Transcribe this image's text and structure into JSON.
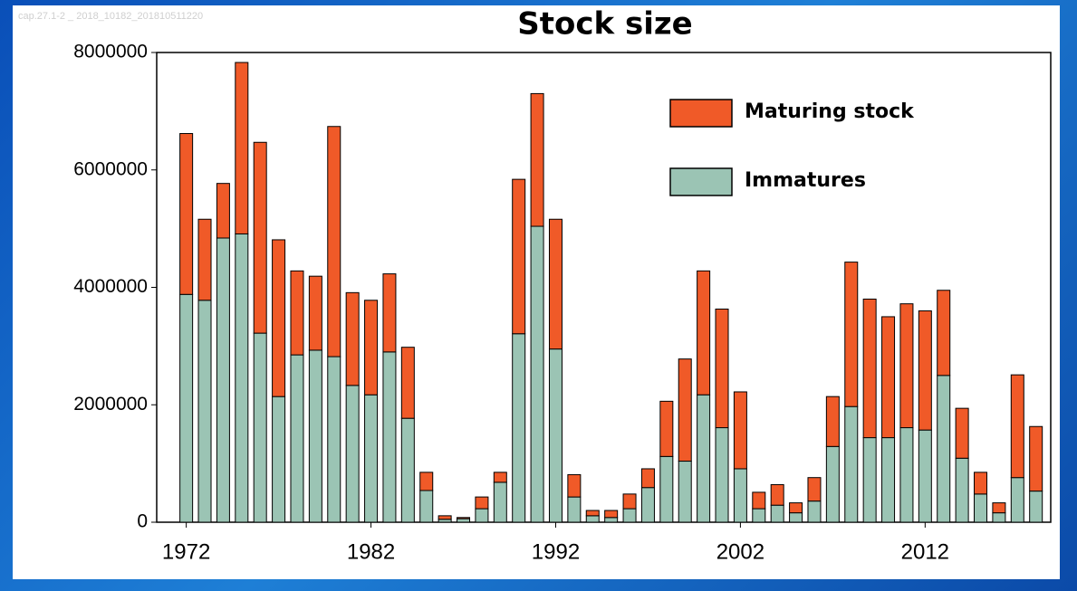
{
  "chart_data": {
    "type": "stacked-bar",
    "title": "Stock size",
    "note": "cap.27.1-2 _ 2018_10182_201810511220",
    "x": [
      1972,
      1973,
      1974,
      1975,
      1976,
      1977,
      1978,
      1979,
      1980,
      1981,
      1982,
      1983,
      1984,
      1985,
      1986,
      1987,
      1988,
      1989,
      1990,
      1991,
      1992,
      1993,
      1994,
      1995,
      1996,
      1997,
      1998,
      1999,
      2000,
      2001,
      2002,
      2003,
      2004,
      2005,
      2006,
      2007,
      2008,
      2009,
      2010,
      2011,
      2012,
      2013,
      2014,
      2015,
      2016,
      2017,
      2018
    ],
    "xlim": [
      1970.4,
      2018.8
    ],
    "xticks": [
      1972,
      1982,
      1992,
      2002,
      2012
    ],
    "ylim": [
      0,
      8000000
    ],
    "yticks": [
      0,
      2000000,
      4000000,
      6000000,
      8000000
    ],
    "legend": "top-right",
    "series": [
      {
        "name": "Immatures",
        "color": "#9bc4b4",
        "values": [
          3880000,
          3780000,
          4840000,
          4910000,
          3220000,
          2140000,
          2850000,
          2930000,
          2820000,
          2330000,
          2170000,
          2900000,
          1770000,
          540000,
          50000,
          60000,
          230000,
          680000,
          3210000,
          5040000,
          2950000,
          430000,
          110000,
          80000,
          230000,
          590000,
          1120000,
          1040000,
          2170000,
          1610000,
          910000,
          230000,
          290000,
          160000,
          360000,
          1290000,
          1970000,
          1440000,
          1440000,
          1610000,
          1570000,
          2500000,
          1090000,
          480000,
          160000,
          760000,
          530000
        ]
      },
      {
        "name": "Maturing stock",
        "color": "#f05a28",
        "values": [
          2740000,
          1380000,
          930000,
          2920000,
          3250000,
          2670000,
          1430000,
          1260000,
          3920000,
          1580000,
          1610000,
          1330000,
          1210000,
          310000,
          60000,
          20000,
          200000,
          170000,
          2630000,
          2260000,
          2210000,
          380000,
          90000,
          120000,
          250000,
          320000,
          940000,
          1740000,
          2110000,
          2020000,
          1310000,
          280000,
          350000,
          170000,
          400000,
          850000,
          2460000,
          2360000,
          2060000,
          2110000,
          2030000,
          1450000,
          850000,
          370000,
          170000,
          1750000,
          1100000
        ]
      }
    ]
  }
}
